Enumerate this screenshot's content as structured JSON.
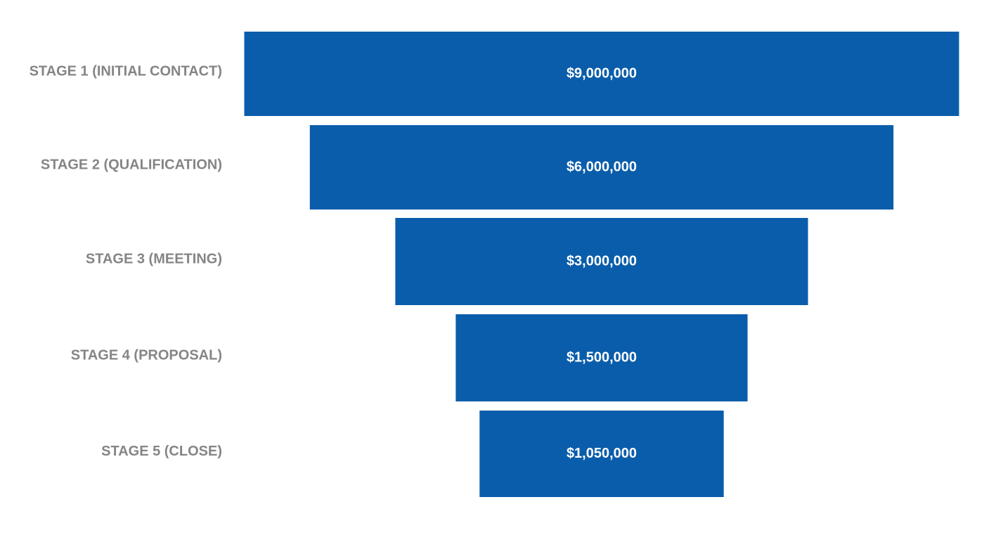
{
  "chart_data": {
    "type": "bar",
    "orientation": "horizontal-funnel",
    "categories": [
      "STAGE 1 (INITIAL CONTACT)",
      "STAGE 2 (QUALIFICATION)",
      "STAGE 3 (MEETING)",
      "STAGE 4 (PROPOSAL)",
      "STAGE 5 (CLOSE)"
    ],
    "values": [
      9000000,
      6000000,
      3000000,
      1500000,
      1050000
    ],
    "value_labels": [
      "$9,000,000",
      "$6,000,000",
      "$3,000,000",
      "$1,500,000",
      "$1,050,000"
    ],
    "bar_color": "#0a5daa",
    "label_color": "#858585",
    "value_label_color": "#ffffff",
    "grid": false,
    "legend": "none"
  }
}
